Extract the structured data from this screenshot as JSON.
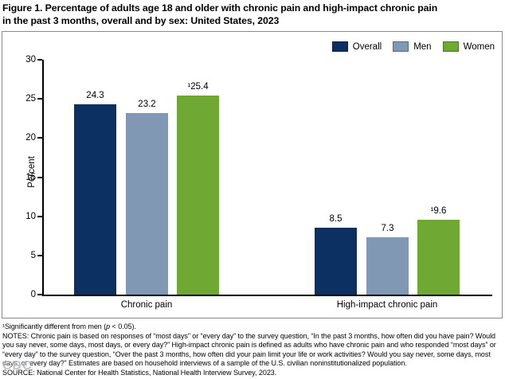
{
  "title": {
    "line1": "Figure 1. Percentage of adults age 18 and older with chronic pain and high-impact chronic pain",
    "line2": "in the past 3 months, overall and by sex: United States, 2023"
  },
  "chart_data": {
    "type": "bar",
    "title": "Percentage of adults age 18 and older with chronic pain and high-impact chronic pain in the past 3 months, overall and by sex: United States, 2023",
    "categories": [
      "Chronic pain",
      "High-impact chronic pain"
    ],
    "series": [
      {
        "name": "Overall",
        "color": "#0c3061",
        "values": [
          24.3,
          8.5
        ],
        "value_labels": [
          "24.3",
          "8.5"
        ]
      },
      {
        "name": "Men",
        "color": "#8098b4",
        "values": [
          23.2,
          7.3
        ],
        "value_labels": [
          "23.2",
          "7.3"
        ]
      },
      {
        "name": "Women",
        "color": "#6fa833",
        "values": [
          25.4,
          9.6
        ],
        "value_labels": [
          "¹25.4",
          "¹9.6"
        ]
      }
    ],
    "xlabel": "",
    "ylabel": "Percent",
    "ylim": [
      0,
      30
    ],
    "yticks": [
      0,
      5,
      10,
      15,
      20,
      25,
      30
    ],
    "grid": false,
    "legend_position": "top-right"
  },
  "footnotes": {
    "sig_pre": "¹Significantly different from men (",
    "sig_p": "p",
    "sig_post": " < 0.05).",
    "notes": "NOTES: Chronic pain is based on responses of “most days” or “every day” to the survey question, “In the past 3 months, how often did you have pain? Would you say never, some days, most days, or every day?” High-impact chronic pain is defined as adults who have chronic pain and who responded “most days” or “every day” to the survey question, “Over the past 3 months, how often did your pain limit your life or work activities? Would you say never, some days, most days, or every day?” Estimates are based on household interviews of a sample of the U.S. civilian noninstitutionalized population.",
    "source": "SOURCE: National Center for Health Statistics, National Health Interview Survey, 2023."
  },
  "watermark": "CDC"
}
